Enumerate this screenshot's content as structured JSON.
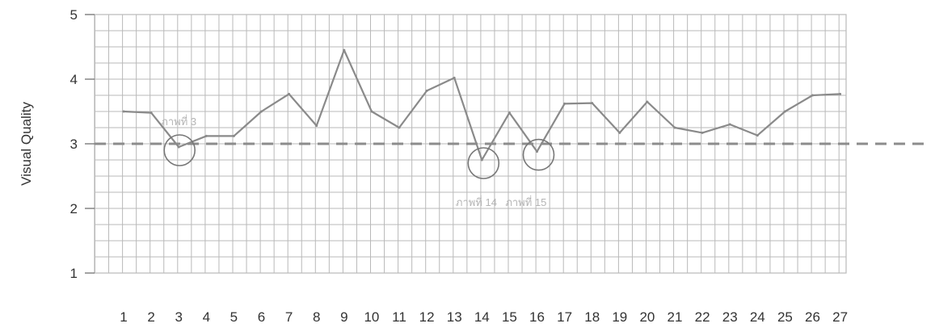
{
  "chart_data": {
    "type": "line",
    "title": "",
    "xlabel": "",
    "ylabel": "Visual Quality",
    "categories": [
      "1",
      "2",
      "3",
      "4",
      "5",
      "6",
      "7",
      "8",
      "9",
      "10",
      "11",
      "12",
      "13",
      "14",
      "15",
      "16",
      "17",
      "18",
      "19",
      "20",
      "21",
      "22",
      "23",
      "24",
      "25",
      "26",
      "27"
    ],
    "values": [
      3.5,
      3.48,
      2.95,
      3.12,
      3.12,
      3.5,
      3.77,
      3.28,
      4.45,
      3.5,
      3.25,
      3.82,
      4.02,
      2.75,
      3.48,
      2.88,
      3.62,
      3.63,
      3.17,
      3.65,
      3.25,
      3.17,
      3.3,
      3.13,
      3.5,
      3.75,
      3.77
    ],
    "ylim": [
      1,
      5
    ],
    "yticks": [
      1,
      2,
      3,
      4,
      5
    ],
    "grid": true,
    "threshold": 3,
    "annotations": [
      {
        "text": "ภาพที่ 3",
        "x": 3,
        "y": 3.35
      },
      {
        "text": "ภาพที่ 14",
        "x": 13.8,
        "y": 2.1
      },
      {
        "text": "ภาพที่ 15",
        "x": 15.6,
        "y": 2.1
      }
    ],
    "circled_points": [
      3,
      14,
      16
    ],
    "colors": {
      "line": "#8a8a8a",
      "grid": "#b9b9b9",
      "threshold": "#8c8c8c",
      "circle": "#777777"
    }
  }
}
